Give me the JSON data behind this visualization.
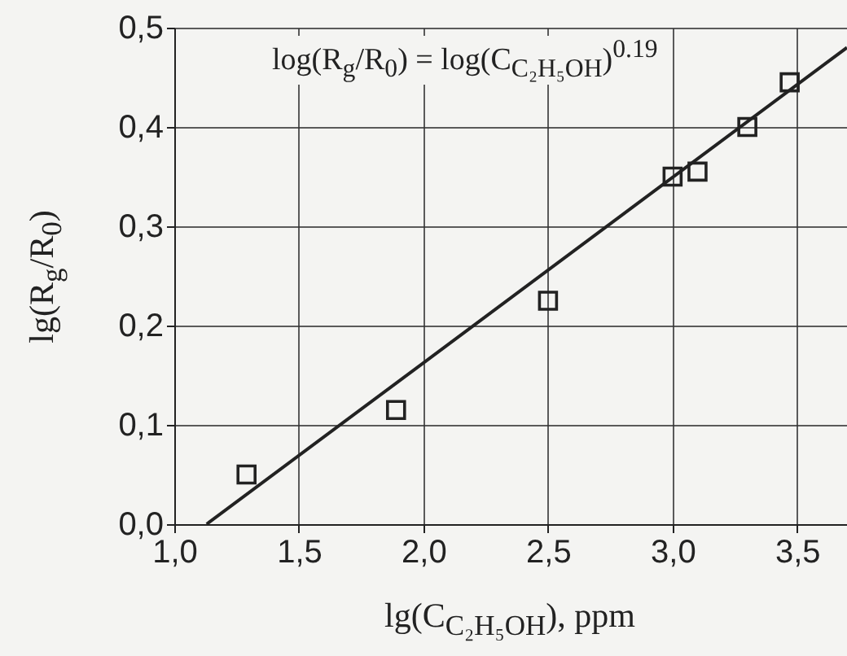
{
  "chart_data": {
    "type": "scatter",
    "xlabel": "lg(C$_{C₂H₅OH}$), ppm",
    "ylabel": "lg(R$_{g}$/R$_{0}$)",
    "annotations": [
      "log(R$_{g}$/R$_{0}$) = log(C$_{C₂H₅OH}$)$^{0.19}$"
    ],
    "series": [
      {
        "marker": "square",
        "x": [
          1.29,
          1.89,
          2.5,
          3.0,
          3.1,
          3.3,
          3.47
        ],
        "values": [
          0.05,
          0.115,
          0.225,
          0.35,
          0.355,
          0.4,
          0.445
        ],
        "color": "#222222"
      },
      {
        "type": "line",
        "line_style": "solid",
        "x": [
          1.13,
          3.7
        ],
        "values": [
          0,
          0.48
        ],
        "color": "#222222"
      }
    ],
    "xlim": [
      1.0,
      3.7
    ],
    "ylim": [
      0,
      0.5
    ],
    "xticks": [
      {
        "value": 1.0,
        "label": "1,0"
      },
      {
        "value": 1.5,
        "label": "1,5"
      },
      {
        "value": 2.0,
        "label": "2,0"
      },
      {
        "value": 2.5,
        "label": "2,5"
      },
      {
        "value": 3.0,
        "label": "3,0"
      },
      {
        "value": 3.5,
        "label": "3,5"
      }
    ],
    "yticks": [
      {
        "value": 0,
        "label": "0,0"
      },
      {
        "value": 0.1,
        "label": "0,1"
      },
      {
        "value": 0.2,
        "label": "0,2"
      },
      {
        "value": 0.3,
        "label": "0,3"
      },
      {
        "value": 0.4,
        "label": "0,4"
      },
      {
        "value": 0.5,
        "label": "0,5"
      }
    ],
    "grid": true
  }
}
